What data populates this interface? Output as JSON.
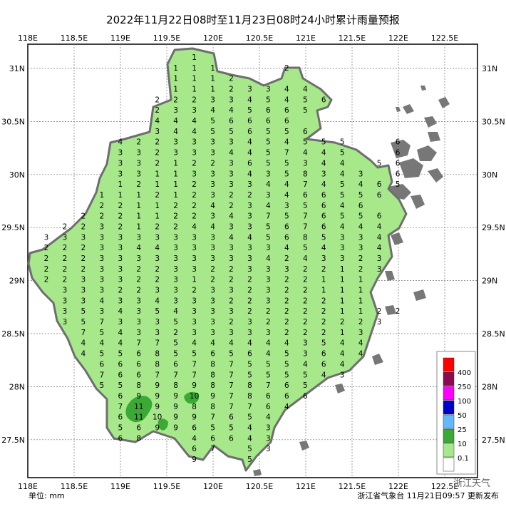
{
  "title": "2022年11月22日08时至11月23日08时24小时累计雨量预报",
  "unit_label": "单位: mm",
  "footer": "浙江省气象台 11月21日09:57 更新发布",
  "watermark": "浙江天气",
  "longitude_labels": [
    "118E",
    "118.5E",
    "119E",
    "119.5E",
    "120E",
    "120.5E",
    "121E",
    "121.5E",
    "122E",
    "122.5E"
  ],
  "latitude_labels": [
    "31N",
    "30.5N",
    "30N",
    "29.5N",
    "29N",
    "28.5N",
    "28N",
    "27.5N"
  ],
  "legend": {
    "levels": [
      400,
      250,
      100,
      50,
      25,
      10,
      0.1
    ],
    "colors": [
      "#ff0000",
      "#8b0a50",
      "#ff00ff",
      "#0000cd",
      "#63b8ff",
      "#3aaa35",
      "#a6e88a",
      "#ffffff"
    ]
  },
  "rainfall": {
    "grid": [
      [
        null,
        null,
        null,
        null,
        null,
        null,
        null,
        null,
        1
      ],
      [
        null,
        null,
        null,
        null,
        null,
        null,
        null,
        1,
        1,
        1,
        null,
        null,
        null,
        2
      ],
      [
        null,
        null,
        null,
        null,
        null,
        null,
        null,
        1,
        1,
        1,
        2
      ],
      [
        null,
        null,
        null,
        null,
        null,
        null,
        null,
        1,
        1,
        1,
        2,
        3,
        3,
        4,
        4
      ],
      [
        null,
        null,
        null,
        null,
        null,
        null,
        2,
        2,
        2,
        3,
        3,
        4,
        5,
        4,
        5,
        6
      ],
      [
        null,
        null,
        null,
        null,
        null,
        null,
        2,
        3,
        3,
        4,
        4,
        5,
        6,
        6,
        5
      ],
      [
        null,
        null,
        null,
        null,
        null,
        null,
        4,
        4,
        4,
        5,
        6,
        6,
        6,
        6
      ],
      [
        null,
        null,
        null,
        null,
        null,
        null,
        3,
        4,
        4,
        5,
        5,
        6,
        5,
        5,
        6
      ],
      [
        null,
        null,
        null,
        null,
        4,
        2,
        2,
        3,
        3,
        3,
        3,
        4,
        5,
        4,
        5,
        5,
        5,
        null,
        null,
        6
      ],
      [
        null,
        null,
        null,
        null,
        3,
        3,
        2,
        3,
        3,
        3,
        4,
        4,
        5,
        7,
        4,
        4,
        5,
        null,
        null,
        6
      ],
      [
        null,
        null,
        null,
        null,
        3,
        3,
        2,
        1,
        2,
        2,
        3,
        6,
        5,
        5,
        3,
        4,
        4,
        null,
        5,
        6
      ],
      [
        null,
        null,
        null,
        null,
        3,
        3,
        1,
        1,
        3,
        3,
        3,
        4,
        3,
        5,
        8,
        3,
        4,
        3,
        null,
        6
      ],
      [
        null,
        null,
        null,
        null,
        1,
        2,
        1,
        1,
        2,
        3,
        3,
        3,
        4,
        4,
        7,
        4,
        5,
        4,
        6,
        5
      ],
      [
        null,
        null,
        null,
        1,
        1,
        1,
        2,
        1,
        2,
        3,
        2,
        2,
        3,
        4,
        6,
        6,
        5,
        5,
        6
      ],
      [
        null,
        null,
        null,
        2,
        2,
        1,
        1,
        2,
        2,
        4,
        2,
        3,
        4,
        3,
        5,
        6,
        4,
        6
      ],
      [
        null,
        null,
        2,
        2,
        2,
        1,
        1,
        2,
        2,
        3,
        4,
        3,
        7,
        5,
        7,
        6,
        5,
        5,
        6
      ],
      [
        null,
        2,
        2,
        3,
        2,
        1,
        2,
        2,
        4,
        4,
        3,
        3,
        5,
        6,
        7,
        6,
        4,
        4,
        4
      ],
      [
        3,
        3,
        3,
        3,
        3,
        3,
        3,
        3,
        3,
        3,
        4,
        4,
        5,
        6,
        8,
        5,
        3,
        3,
        4
      ],
      [
        2,
        2,
        2,
        3,
        3,
        4,
        4,
        3,
        3,
        3,
        3,
        3,
        3,
        4,
        5,
        4,
        3,
        3,
        4
      ],
      [
        2,
        2,
        2,
        3,
        3,
        3,
        3,
        3,
        3,
        3,
        3,
        3,
        4,
        2,
        4,
        3,
        3,
        2,
        3
      ],
      [
        2,
        2,
        2,
        3,
        3,
        2,
        2,
        3,
        3,
        2,
        2,
        3,
        3,
        3,
        2,
        2,
        1,
        2,
        3
      ],
      [
        2,
        2,
        3,
        3,
        3,
        2,
        2,
        3,
        1,
        2,
        2,
        2,
        3,
        2,
        2,
        1,
        1,
        1
      ],
      [
        null,
        3,
        3,
        3,
        2,
        2,
        3,
        3,
        2,
        3,
        3,
        2,
        3,
        2,
        2,
        1,
        1,
        1
      ],
      [
        null,
        3,
        3,
        4,
        3,
        3,
        4,
        3,
        3,
        3,
        2,
        2,
        3,
        2,
        2,
        2,
        1,
        1
      ],
      [
        null,
        3,
        5,
        3,
        4,
        3,
        5,
        4,
        3,
        3,
        3,
        2,
        2,
        2,
        2,
        2,
        1,
        1,
        2,
        2
      ],
      [
        null,
        3,
        5,
        7,
        3,
        3,
        3,
        5,
        3,
        3,
        2,
        3,
        2,
        2,
        2,
        2,
        2,
        2,
        3
      ],
      [
        null,
        null,
        7,
        5,
        4,
        3,
        3,
        2,
        3,
        3,
        3,
        3,
        3,
        2,
        2,
        2,
        1,
        3
      ],
      [
        null,
        null,
        4,
        4,
        4,
        7,
        7,
        5,
        4,
        4,
        4,
        4,
        4,
        4,
        3,
        5,
        4,
        4
      ],
      [
        null,
        null,
        4,
        5,
        5,
        6,
        8,
        5,
        5,
        6,
        5,
        6,
        4,
        5,
        3,
        6,
        4,
        4
      ],
      [
        null,
        null,
        null,
        6,
        6,
        6,
        8,
        6,
        7,
        8,
        7,
        5,
        5,
        5,
        4,
        6,
        4
      ],
      [
        null,
        null,
        null,
        7,
        6,
        6,
        7,
        7,
        7,
        8,
        7,
        5,
        5,
        5,
        5,
        4,
        3
      ],
      [
        null,
        null,
        null,
        5,
        5,
        8,
        9,
        8,
        9,
        8,
        7,
        8,
        7,
        6,
        5
      ],
      [
        null,
        null,
        null,
        null,
        6,
        9,
        9,
        9,
        10,
        9,
        7,
        8,
        6,
        6,
        6
      ],
      [
        null,
        null,
        null,
        null,
        7,
        11,
        9,
        9,
        8,
        8,
        7,
        7,
        6,
        4
      ],
      [
        null,
        null,
        null,
        null,
        6,
        11,
        10,
        9,
        9,
        7,
        6,
        5,
        4
      ],
      [
        null,
        null,
        null,
        null,
        5,
        6,
        9,
        9,
        6,
        5,
        5,
        4,
        3
      ],
      [
        null,
        null,
        null,
        null,
        6,
        8,
        null,
        null,
        4,
        6,
        6,
        4,
        3
      ],
      [
        null,
        null,
        null,
        null,
        null,
        null,
        null,
        null,
        6,
        7,
        null,
        5,
        3
      ],
      [
        null,
        null,
        null,
        null,
        null,
        null,
        null,
        null,
        9,
        null,
        null,
        5
      ]
    ]
  }
}
